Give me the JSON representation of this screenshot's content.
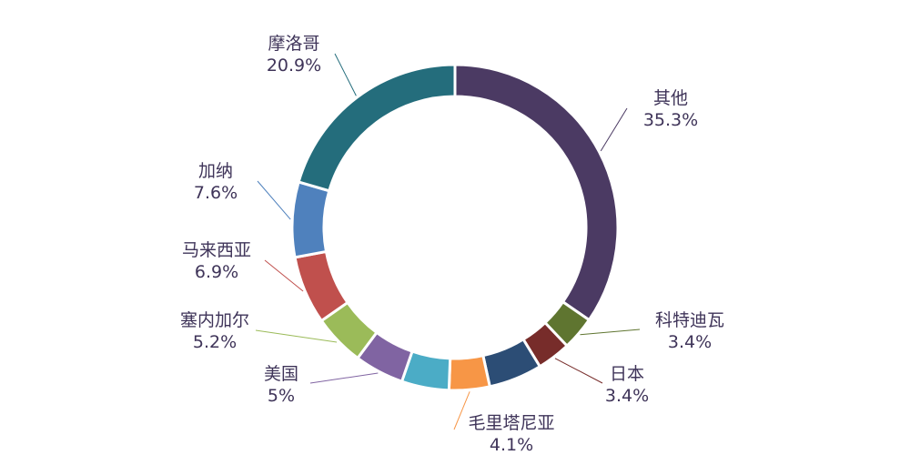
{
  "chart_data": {
    "type": "pie",
    "variant": "donut",
    "legend": "none",
    "slices": [
      {
        "name": "其他",
        "value": 35.3,
        "value_label": "35.3%",
        "color": "#4b3a63"
      },
      {
        "name": "科特迪瓦",
        "value": 3.4,
        "value_label": "3.4%",
        "color": "#5f7530"
      },
      {
        "name": "日本",
        "value": 3.4,
        "value_label": "3.4%",
        "color": "#772c2a"
      },
      {
        "name": "",
        "value": 5.4,
        "value_label": "",
        "color": "#2c4d75"
      },
      {
        "name": "毛里塔尼亚",
        "value": 4.1,
        "value_label": "4.1%",
        "color": "#f79646"
      },
      {
        "name": "",
        "value": 4.8,
        "value_label": "",
        "color": "#4bacc6"
      },
      {
        "name": "美国",
        "value": 5.0,
        "value_label": "5%",
        "color": "#8064a2"
      },
      {
        "name": "塞内加尔",
        "value": 5.2,
        "value_label": "5.2%",
        "color": "#9bbb59"
      },
      {
        "name": "马来西亚",
        "value": 6.9,
        "value_label": "6.9%",
        "color": "#c0504d"
      },
      {
        "name": "加纳",
        "value": 7.6,
        "value_label": "7.6%",
        "color": "#4f81bd"
      },
      {
        "name": "摩洛哥",
        "value": 20.9,
        "value_label": "20.9%",
        "color": "#246d7c"
      }
    ]
  }
}
